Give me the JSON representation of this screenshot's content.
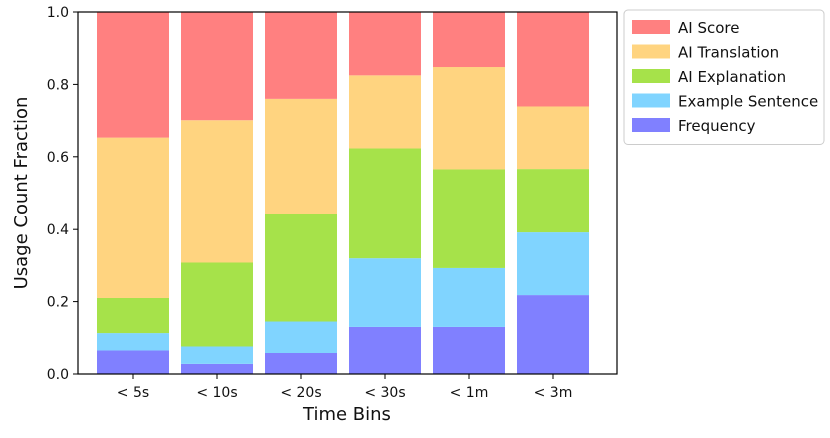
{
  "chart_data": {
    "type": "bar",
    "stacked": true,
    "categories": [
      "< 5s",
      "< 10s",
      "< 20s",
      "< 30s",
      "< 1m",
      "< 3m"
    ],
    "series": [
      {
        "name": "Frequency",
        "color": "#8080ff",
        "values": [
          0.065,
          0.028,
          0.058,
          0.13,
          0.13,
          0.218
        ]
      },
      {
        "name": "Example Sentence",
        "color": "#80d4ff",
        "values": [
          0.048,
          0.048,
          0.087,
          0.19,
          0.163,
          0.174
        ]
      },
      {
        "name": "AI Explanation",
        "color": "#a6e24a",
        "values": [
          0.097,
          0.232,
          0.297,
          0.303,
          0.272,
          0.174
        ]
      },
      {
        "name": "AI Translation",
        "color": "#ffd480",
        "values": [
          0.443,
          0.393,
          0.318,
          0.202,
          0.283,
          0.173
        ]
      },
      {
        "name": "AI Score",
        "color": "#ff8080",
        "values": [
          0.347,
          0.299,
          0.24,
          0.175,
          0.152,
          0.261
        ]
      }
    ],
    "legend_order": [
      "AI Score",
      "AI Translation",
      "AI Explanation",
      "Example Sentence",
      "Frequency"
    ],
    "xlabel": "Time Bins",
    "ylabel": "Usage Count Fraction",
    "ylim": [
      0,
      1.0
    ],
    "yticks": [
      "0.0",
      "0.2",
      "0.4",
      "0.6",
      "0.8",
      "1.0"
    ],
    "legend_position": "outside-top-right",
    "grid": false
  }
}
